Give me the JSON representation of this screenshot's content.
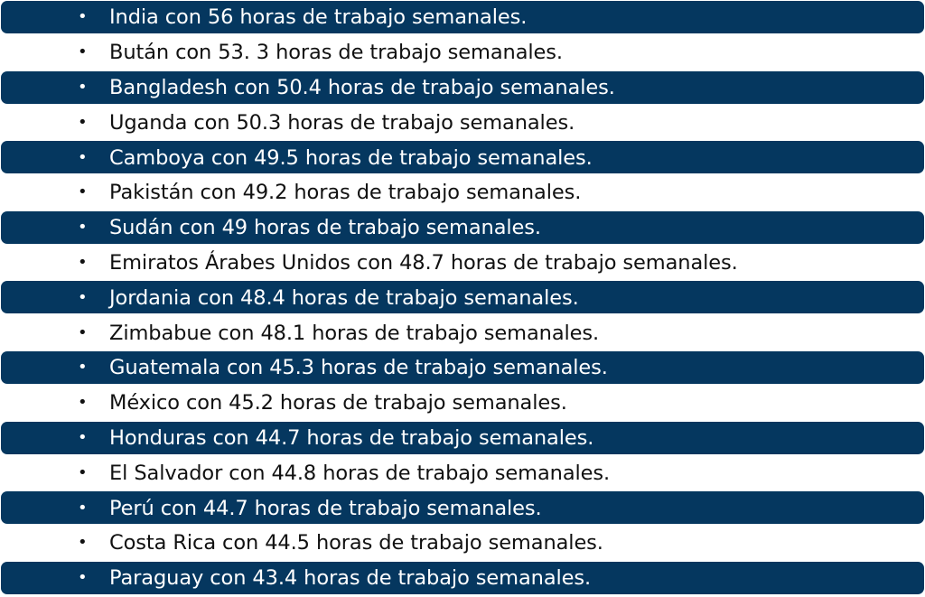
{
  "colors": {
    "band_background": "#05375f",
    "band_text": "#ffffff",
    "plain_text": "#111111",
    "page_background": "#ffffff"
  },
  "bullet_glyph": "•",
  "items": [
    {
      "text": "India con 56 horas de trabajo semanales.",
      "style": "band"
    },
    {
      "text": "Bután con 53. 3 horas de trabajo semanales.",
      "style": "plain"
    },
    {
      "text": "Bangladesh con 50.4 horas de trabajo semanales.",
      "style": "band"
    },
    {
      "text": "Uganda con 50.3 horas de trabajo semanales.",
      "style": "plain"
    },
    {
      "text": "Camboya con 49.5 horas de trabajo semanales.",
      "style": "band"
    },
    {
      "text": "Pakistán con 49.2 horas de trabajo semanales.",
      "style": "plain"
    },
    {
      "text": "Sudán con 49 horas de trabajo semanales.",
      "style": "band"
    },
    {
      "text": "Emiratos Árabes Unidos con 48.7 horas de trabajo semanales.",
      "style": "plain"
    },
    {
      "text": "Jordania con 48.4 horas de trabajo semanales.",
      "style": "band"
    },
    {
      "text": "Zimbabue con 48.1 horas de trabajo semanales.",
      "style": "plain"
    },
    {
      "text": "Guatemala con 45.3 horas de trabajo semanales.",
      "style": "band"
    },
    {
      "text": "México con 45.2 horas de trabajo semanales.",
      "style": "plain"
    },
    {
      "text": "Honduras con 44.7 horas de trabajo semanales.",
      "style": "band"
    },
    {
      "text": "El Salvador con 44.8 horas de trabajo semanales.",
      "style": "plain"
    },
    {
      "text": "Perú con 44.7 horas de trabajo semanales.",
      "style": "band"
    },
    {
      "text": "Costa Rica con 44.5 horas de trabajo semanales.",
      "style": "plain"
    },
    {
      "text": "Paraguay con 43.4 horas de trabajo semanales.",
      "style": "band"
    }
  ]
}
